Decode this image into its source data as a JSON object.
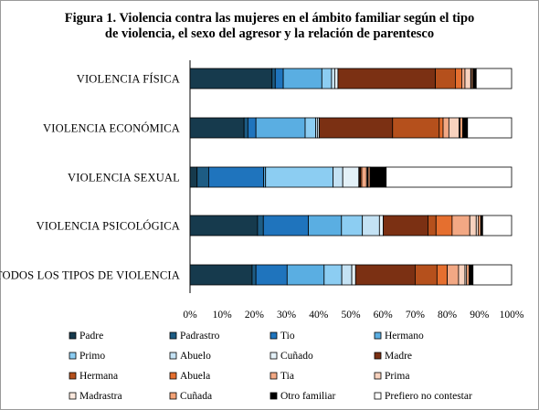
{
  "title_line1": "Figura 1. Violencia contra las mujeres en el ámbito familiar según el tipo",
  "title_line2": "de violencia, el sexo del agresor y la relación de parentesco",
  "chart_data": {
    "type": "bar",
    "orientation": "horizontal",
    "stacked": true,
    "percent_stacked": true,
    "xlim": [
      0,
      100
    ],
    "x_ticks": [
      "0%",
      "10%",
      "20%",
      "30%",
      "40%",
      "50%",
      "60%",
      "70%",
      "80%",
      "90%",
      "100%"
    ],
    "grid": false,
    "legend_position": "bottom",
    "categories": [
      "VIOLENCIA FÍSICA",
      "VIOLENCIA ECONÓMICA",
      "VIOLENCIA SEXUAL",
      "VIOLENCIA PSICOLÓGICA",
      "TODOS LOS TIPOS DE VIOLENCIA"
    ],
    "series": [
      {
        "name": "Padre",
        "color": "#163a4d",
        "values": [
          25.5,
          16.8,
          2.2,
          21.0,
          19.3
        ]
      },
      {
        "name": "Padrastro",
        "color": "#1d5c84",
        "values": [
          1.0,
          1.2,
          3.6,
          1.8,
          1.2
        ]
      },
      {
        "name": "Tio",
        "color": "#1f74bd",
        "values": [
          2.5,
          2.5,
          17.1,
          14.0,
          9.7
        ]
      },
      {
        "name": "Hermano",
        "color": "#5aaee2",
        "values": [
          12.0,
          15.3,
          0.6,
          10.3,
          11.5
        ]
      },
      {
        "name": "Primo",
        "color": "#8ccdf2",
        "values": [
          3.0,
          3.3,
          21.0,
          6.5,
          5.5
        ]
      },
      {
        "name": "Abuelo",
        "color": "#c4e2f4",
        "values": [
          1.0,
          0.6,
          3.0,
          5.3,
          3.1
        ]
      },
      {
        "name": "Cuñado",
        "color": "#e4f1f8",
        "values": [
          1.0,
          0.5,
          5.0,
          1.2,
          1.2
        ]
      },
      {
        "name": "Madre",
        "color": "#7b3013",
        "values": [
          30.3,
          22.8,
          0.3,
          13.9,
          18.5
        ]
      },
      {
        "name": "Hermana",
        "color": "#b5501c",
        "values": [
          6.2,
          14.5,
          0.2,
          2.5,
          6.8
        ]
      },
      {
        "name": "Abuela",
        "color": "#e56f2f",
        "values": [
          2.0,
          1.2,
          0.4,
          5.0,
          3.2
        ]
      },
      {
        "name": "Tia",
        "color": "#f2a884",
        "values": [
          1.0,
          1.8,
          1.5,
          5.5,
          3.5
        ]
      },
      {
        "name": "Prima",
        "color": "#f8d2be",
        "values": [
          1.8,
          3.2,
          0.3,
          2.0,
          2.0
        ]
      },
      {
        "name": "Madrastra",
        "color": "#fbe8dd",
        "values": [
          0.2,
          0.3,
          0.2,
          0.6,
          0.5
        ]
      },
      {
        "name": "Cuñada",
        "color": "#f3a276",
        "values": [
          0.5,
          0.8,
          0.6,
          0.8,
          0.8
        ]
      },
      {
        "name": "Otro familiar",
        "color": "#000000",
        "values": [
          1.0,
          1.5,
          5.0,
          0.6,
          1.2
        ]
      },
      {
        "name": "Prefiero no contestar",
        "color": "#ffffff",
        "values": [
          11.0,
          13.7,
          39.0,
          9.0,
          12.0
        ]
      }
    ]
  }
}
